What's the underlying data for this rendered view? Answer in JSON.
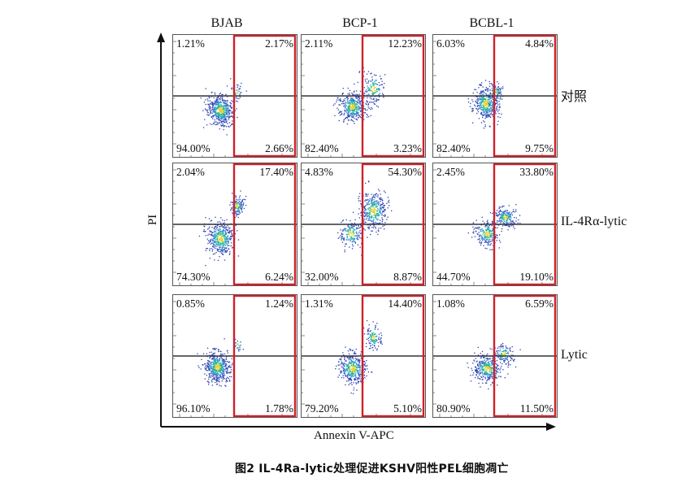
{
  "columns": [
    "BJAB",
    "BCP-1",
    "BCBL-1"
  ],
  "rows": [
    "对照",
    "IL-4Rα-lytic",
    "Lytic"
  ],
  "panels": [
    [
      {
        "ul": "1.21%",
        "ur": "2.17%",
        "ll": "94.00%",
        "lr": "2.66%"
      },
      {
        "ul": "2.11%",
        "ur": "12.23%",
        "ll": "82.40%",
        "lr": "3.23%"
      },
      {
        "ul": "6.03%",
        "ur": "4.84%",
        "ll": "82.40%",
        "lr": "9.75%"
      }
    ],
    [
      {
        "ul": "2.04%",
        "ur": "17.40%",
        "ll": "74.30%",
        "lr": "6.24%"
      },
      {
        "ul": "4.83%",
        "ur": "54.30%",
        "ll": "32.00%",
        "lr": "8.87%"
      },
      {
        "ul": "2.45%",
        "ur": "33.80%",
        "ll": "44.70%",
        "lr": "19.10%"
      }
    ],
    [
      {
        "ul": "0.85%",
        "ur": "1.24%",
        "ll": "96.10%",
        "lr": "1.78%"
      },
      {
        "ul": "1.31%",
        "ur": "14.40%",
        "ll": "79.20%",
        "lr": "5.10%"
      },
      {
        "ul": "1.08%",
        "ur": "6.59%",
        "ll": "80.90%",
        "lr": "11.50%"
      }
    ]
  ],
  "axes": {
    "y_label": "PI",
    "x_label": "Annexin V-APC"
  },
  "caption": "图2  IL-4Ra-lytic处理促进KSHV阳性PEL细胞凋亡",
  "colors": {
    "gate": "#d0202a",
    "quadrant_line": "#333333",
    "dots_low": "#2a3fb0",
    "dots_mid": "#22b3a0",
    "dots_high": "#e8d028"
  }
}
